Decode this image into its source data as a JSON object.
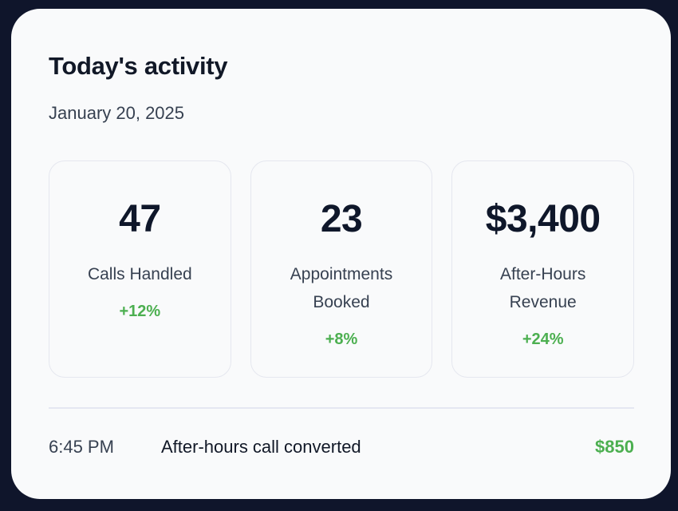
{
  "header": {
    "title": "Today's activity",
    "date": "January 20, 2025"
  },
  "stats": [
    {
      "value": "47",
      "label": "Calls Handled",
      "change": "+12%"
    },
    {
      "value": "23",
      "label": "Appointments Booked",
      "change": "+8%"
    },
    {
      "value": "$3,400",
      "label": "After-Hours Revenue",
      "change": "+24%"
    }
  ],
  "activity": [
    {
      "time": "6:45 PM",
      "description": "After-hours call converted",
      "amount": "$850"
    }
  ],
  "colors": {
    "background": "#0f152b",
    "panel": "#f9fafb",
    "text_primary": "#111827",
    "text_secondary": "#374151",
    "positive": "#4caf50",
    "border": "#e5e7ef"
  }
}
